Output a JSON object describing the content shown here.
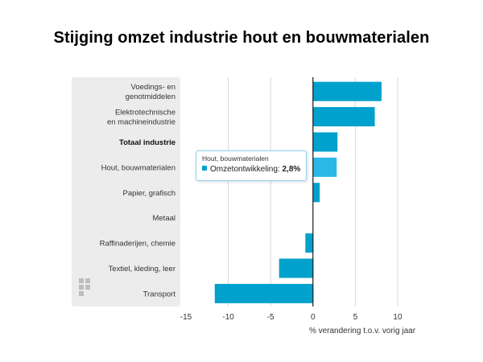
{
  "page": {
    "title": "Stijging omzet industrie hout en bouwmaterialen"
  },
  "chart_data": {
    "type": "bar",
    "orientation": "horizontal",
    "categories": [
      [
        "Voedings- en",
        "genotmiddelen"
      ],
      [
        "Elektrotechnische",
        "en machineindustrie"
      ],
      [
        "Totaal industrie"
      ],
      [
        "Hout, bouwmaterialen"
      ],
      [
        "Papier, grafisch"
      ],
      [
        "Metaal"
      ],
      [
        "Raffinaderijen, chemie"
      ],
      [
        "Textiel, kleding, leer"
      ],
      [
        "Transport"
      ]
    ],
    "values": [
      8.1,
      7.3,
      2.9,
      2.8,
      0.8,
      0.0,
      -0.9,
      -4.0,
      -11.6
    ],
    "bold_category_index": 2,
    "highlight_index": 3,
    "xlabel": "% verandering t.o.v. vorig jaar",
    "ylabel": "",
    "xlim": [
      -15,
      12
    ],
    "xticks": [
      -15,
      -10,
      -5,
      0,
      5,
      10
    ],
    "tick_labels": [
      "-15",
      "-10",
      "-5",
      "0",
      "5",
      "10"
    ],
    "grid": true,
    "legend": "none",
    "colors": {
      "bar": "#00a1cd",
      "bar_highlight": "#2bb8e6",
      "label_panel": "#ececec",
      "grid": "#d9d9d9",
      "zero_line": "#1a1a1a"
    }
  },
  "tooltip": {
    "title": "Hout, bouwmaterialen",
    "series_label": "Omzetontwikkeling:",
    "value": "2,8%"
  }
}
